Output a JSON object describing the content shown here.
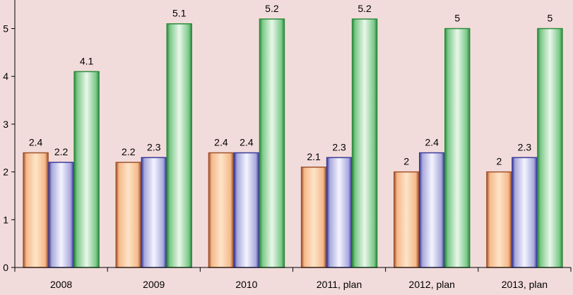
{
  "chart_data": {
    "type": "bar",
    "categories": [
      "2008",
      "2009",
      "2010",
      "2011, plan",
      "2012, plan",
      "2013, plan"
    ],
    "series": [
      {
        "values": [
          2.4,
          2.2,
          2.4,
          2.1,
          2.0,
          2.0
        ],
        "labels": [
          "2.4",
          "2.2",
          "2.4",
          "2.1",
          "2",
          "2"
        ]
      },
      {
        "values": [
          2.2,
          2.3,
          2.4,
          2.3,
          2.4,
          2.3
        ],
        "labels": [
          "2.2",
          "2.3",
          "2.4",
          "2.3",
          "2.4",
          "2.3"
        ]
      },
      {
        "values": [
          4.1,
          5.1,
          5.2,
          5.2,
          5.0,
          5.0
        ],
        "labels": [
          "4.1",
          "5.1",
          "5.2",
          "5.2",
          "5",
          "5"
        ]
      }
    ],
    "yticks": [
      "0",
      "1",
      "2",
      "3",
      "4",
      "5"
    ],
    "ylim": [
      0,
      5.5
    ],
    "grid": false,
    "legend": "none",
    "colors": {
      "background": "#f2dcdb",
      "series": [
        {
          "edge": "#a0522d",
          "light": "#fde4c8",
          "mid": "#f6b98a"
        },
        {
          "edge": "#3b3b9a",
          "light": "#f4f4ff",
          "mid": "#a9a9dc"
        },
        {
          "edge": "#2e8b3e",
          "light": "#eaf7ea",
          "mid": "#7cc98a"
        }
      ]
    }
  }
}
